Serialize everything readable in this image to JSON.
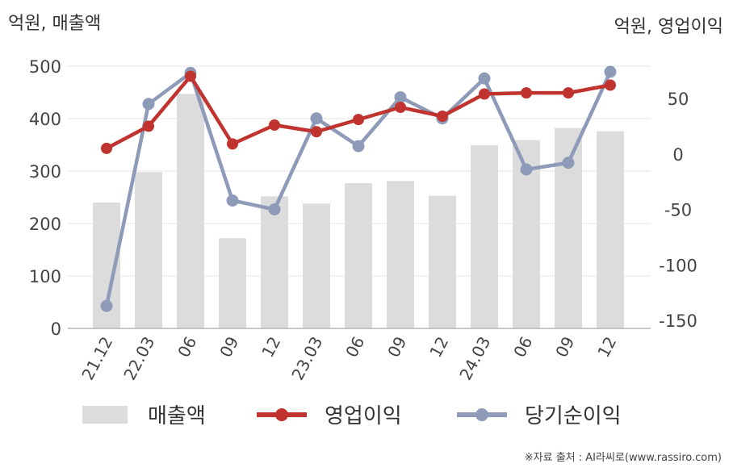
{
  "chart_data": {
    "type": "bar+line",
    "left_axis_unit": "억원, 매출액",
    "right_axis_unit": "억원, 영업이익",
    "categories": [
      "21.12",
      "22.03",
      "06",
      "09",
      "12",
      "23.03",
      "06",
      "09",
      "12",
      "24.03",
      "06",
      "09",
      "12"
    ],
    "left_axis": {
      "ylim": [
        0,
        500
      ],
      "ticks": [
        "0",
        "100",
        "200",
        "300",
        "400",
        "500"
      ]
    },
    "right_axis": {
      "ylim": [
        -160,
        80
      ],
      "ticks": [
        "-150",
        "-100",
        "-50",
        "0",
        "50"
      ]
    },
    "series": [
      {
        "name": "매출액",
        "type": "bar",
        "axis": "left",
        "color": "#dcdcdc",
        "values": [
          240,
          298,
          447,
          172,
          252,
          238,
          277,
          281,
          253,
          349,
          359,
          382,
          376
        ]
      },
      {
        "name": "영업이익",
        "type": "line",
        "axis": "right",
        "color": "#c0332f",
        "values": [
          5,
          25,
          70,
          9,
          26,
          20,
          31,
          42,
          34,
          54,
          55,
          55,
          62
        ]
      },
      {
        "name": "당기순이익",
        "type": "line",
        "axis": "right",
        "color": "#8e9bb8",
        "values": [
          -137,
          45,
          73,
          -42,
          -50,
          32,
          7,
          51,
          32,
          68,
          -14,
          -8,
          74
        ]
      }
    ],
    "grid": true,
    "legend_position": "bottom"
  },
  "source_note": "※자료 출처 : AI라씨로(www.rassiro.com)"
}
